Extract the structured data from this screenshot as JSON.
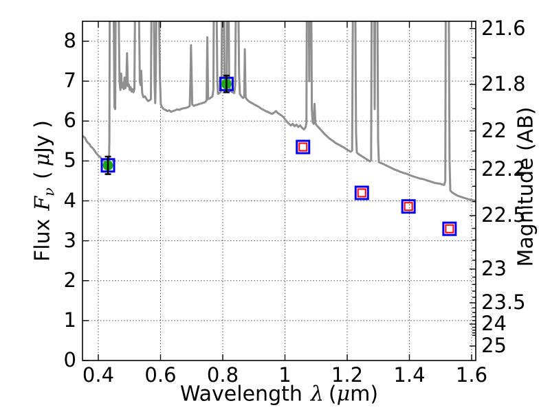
{
  "labels": {
    "xlabel": {
      "word": "Wavelength",
      "sym": "λ",
      "unit_open": "(",
      "unit_mu": "μ",
      "unit_rest": "m)"
    },
    "ylabel": {
      "word": "Flux",
      "sym": "F",
      "sub": "ν",
      "unit_open": "(",
      "unit_mu": "μ",
      "unit_rest": "Jy )"
    },
    "ylabel_right": "Magnitude (AB)"
  },
  "chart_data": {
    "type": "line",
    "title": "",
    "xlabel": "Wavelength λ (μm)",
    "ylabel": "Flux Fν ( μJy )",
    "ylabel_right": "Magnitude (AB)",
    "xlim": [
      0.3492,
      1.6133
    ],
    "ylim": [
      0,
      8.5
    ],
    "grid": {
      "on": true,
      "style": "dotted",
      "color": "#4a4a4a"
    },
    "legend": "none",
    "x_ticks": [
      0.4,
      0.6,
      0.8,
      1.0,
      1.2,
      1.4,
      1.6
    ],
    "x_tick_labels": [
      "0.4",
      "0.6",
      "0.8",
      "1",
      "1.2",
      "1.4",
      "1.6"
    ],
    "y_ticks_left": [
      0,
      1,
      2,
      3,
      4,
      5,
      6,
      7,
      8
    ],
    "y_tick_labels_left": [
      "0",
      "1",
      "2",
      "3",
      "4",
      "5",
      "6",
      "7",
      "8"
    ],
    "right_axis": {
      "label": "Magnitude (AB)",
      "major_ticks": [
        21.6,
        21.8,
        22.0,
        22.2,
        22.5,
        23.0,
        23.5,
        24.0,
        25.0
      ],
      "major_tick_labels": [
        "21.6",
        "21.8",
        "22",
        "22.2",
        "22.5",
        "23",
        "23.5",
        "24",
        "25"
      ],
      "minor_tick_step": 0.1,
      "minor_tick_max": 24.4,
      "ab_zeropoint_ujy": 23.9
    },
    "series": [
      {
        "name": "galaxy-spectrum",
        "type": "line",
        "color": "#8f8f8f",
        "linewidth": 3,
        "points": [
          [
            0.349,
            5.63
          ],
          [
            0.354,
            5.6
          ],
          [
            0.358,
            5.57
          ],
          [
            0.362,
            5.5
          ],
          [
            0.367,
            5.45
          ],
          [
            0.372,
            5.42
          ],
          [
            0.376,
            5.36
          ],
          [
            0.381,
            5.33
          ],
          [
            0.386,
            5.28
          ],
          [
            0.391,
            5.22
          ],
          [
            0.396,
            5.17
          ],
          [
            0.401,
            5.13
          ],
          [
            0.406,
            5.1
          ],
          [
            0.411,
            5.05
          ],
          [
            0.416,
            5.02
          ],
          [
            0.421,
            4.97
          ],
          [
            0.426,
            4.93
          ],
          [
            0.43,
            4.9
          ],
          [
            0.434,
            4.89
          ],
          [
            0.4355,
            5.5
          ],
          [
            0.437,
            9.2
          ],
          [
            0.449,
            9.2
          ],
          [
            0.452,
            6.35
          ],
          [
            0.4545,
            6.3
          ],
          [
            0.456,
            9.2
          ],
          [
            0.465,
            9.2
          ],
          [
            0.468,
            7.0
          ],
          [
            0.471,
            6.78
          ],
          [
            0.4735,
            7.19
          ],
          [
            0.476,
            6.84
          ],
          [
            0.479,
            6.95
          ],
          [
            0.4815,
            6.8
          ],
          [
            0.4845,
            7.09
          ],
          [
            0.487,
            6.82
          ],
          [
            0.49,
            6.95
          ],
          [
            0.4925,
            7.7
          ],
          [
            0.495,
            6.88
          ],
          [
            0.498,
            6.92
          ],
          [
            0.501,
            6.78
          ],
          [
            0.504,
            6.85
          ],
          [
            0.507,
            6.74
          ],
          [
            0.51,
            6.8
          ],
          [
            0.513,
            6.72
          ],
          [
            0.516,
            6.8
          ],
          [
            0.5185,
            9.2
          ],
          [
            0.53,
            9.2
          ],
          [
            0.5335,
            7.0
          ],
          [
            0.536,
            6.9
          ],
          [
            0.538,
            7.26
          ],
          [
            0.541,
            6.7
          ],
          [
            0.545,
            6.6
          ],
          [
            0.55,
            6.62
          ],
          [
            0.555,
            6.55
          ],
          [
            0.56,
            6.5
          ],
          [
            0.565,
            6.52
          ],
          [
            0.569,
            6.55
          ],
          [
            0.571,
            9.2
          ],
          [
            0.578,
            9.2
          ],
          [
            0.581,
            6.9
          ],
          [
            0.583,
            6.45
          ],
          [
            0.585,
            7.2
          ],
          [
            0.587,
            9.2
          ],
          [
            0.5945,
            9.2
          ],
          [
            0.598,
            7.1
          ],
          [
            0.601,
            6.42
          ],
          [
            0.605,
            6.35
          ],
          [
            0.61,
            6.3
          ],
          [
            0.616,
            6.28
          ],
          [
            0.622,
            6.25
          ],
          [
            0.628,
            6.27
          ],
          [
            0.634,
            6.23
          ],
          [
            0.64,
            6.25
          ],
          [
            0.647,
            6.27
          ],
          [
            0.654,
            6.29
          ],
          [
            0.661,
            6.28
          ],
          [
            0.668,
            6.31
          ],
          [
            0.675,
            6.32
          ],
          [
            0.682,
            6.33
          ],
          [
            0.689,
            6.35
          ],
          [
            0.694,
            6.38
          ],
          [
            0.6965,
            7.2
          ],
          [
            0.698,
            7.9
          ],
          [
            0.7,
            7.2
          ],
          [
            0.702,
            6.42
          ],
          [
            0.707,
            6.38
          ],
          [
            0.713,
            6.4
          ],
          [
            0.719,
            6.41
          ],
          [
            0.725,
            6.43
          ],
          [
            0.731,
            6.44
          ],
          [
            0.737,
            6.46
          ],
          [
            0.743,
            6.47
          ],
          [
            0.748,
            6.52
          ],
          [
            0.7505,
            8.1
          ],
          [
            0.753,
            6.55
          ],
          [
            0.757,
            6.56
          ],
          [
            0.762,
            6.59
          ],
          [
            0.767,
            6.62
          ],
          [
            0.77,
            6.8
          ],
          [
            0.7715,
            9.2
          ],
          [
            0.78,
            9.2
          ],
          [
            0.7825,
            7.0
          ],
          [
            0.785,
            6.68
          ],
          [
            0.789,
            6.7
          ],
          [
            0.793,
            6.72
          ],
          [
            0.796,
            6.9
          ],
          [
            0.798,
            9.2
          ],
          [
            0.8035,
            9.2
          ],
          [
            0.8055,
            7.1
          ],
          [
            0.807,
            6.74
          ],
          [
            0.81,
            6.76
          ],
          [
            0.8125,
            7.0
          ],
          [
            0.814,
            9.2
          ],
          [
            0.8185,
            9.2
          ],
          [
            0.8205,
            7.1
          ],
          [
            0.823,
            6.76
          ],
          [
            0.827,
            6.74
          ],
          [
            0.832,
            6.72
          ],
          [
            0.837,
            6.7
          ],
          [
            0.84,
            6.9
          ],
          [
            0.8425,
            9.2
          ],
          [
            0.85,
            9.2
          ],
          [
            0.8525,
            7.2
          ],
          [
            0.855,
            6.68
          ],
          [
            0.86,
            6.62
          ],
          [
            0.865,
            6.58
          ],
          [
            0.869,
            6.6
          ],
          [
            0.871,
            7.8
          ],
          [
            0.8735,
            6.6
          ],
          [
            0.877,
            6.55
          ],
          [
            0.883,
            6.5
          ],
          [
            0.889,
            6.47
          ],
          [
            0.896,
            6.44
          ],
          [
            0.903,
            6.41
          ],
          [
            0.91,
            6.38
          ],
          [
            0.917,
            6.35
          ],
          [
            0.924,
            6.31
          ],
          [
            0.931,
            6.28
          ],
          [
            0.938,
            6.25
          ],
          [
            0.945,
            6.23
          ],
          [
            0.952,
            6.2
          ],
          [
            0.959,
            6.18
          ],
          [
            0.965,
            6.21
          ],
          [
            0.971,
            6.25
          ],
          [
            0.977,
            6.2
          ],
          [
            0.983,
            6.17
          ],
          [
            0.989,
            6.14
          ],
          [
            0.995,
            6.1
          ],
          [
            1.001,
            6.04
          ],
          [
            1.007,
            5.98
          ],
          [
            1.013,
            5.93
          ],
          [
            1.019,
            5.89
          ],
          [
            1.025,
            5.93
          ],
          [
            1.031,
            5.87
          ],
          [
            1.037,
            5.91
          ],
          [
            1.043,
            5.85
          ],
          [
            1.049,
            5.89
          ],
          [
            1.055,
            5.83
          ],
          [
            1.061,
            5.79
          ],
          [
            1.066,
            5.84
          ],
          [
            1.069,
            5.95
          ],
          [
            1.0705,
            9.2
          ],
          [
            1.0765,
            9.2
          ],
          [
            1.078,
            7.0
          ],
          [
            1.0795,
            9.2
          ],
          [
            1.0845,
            9.2
          ],
          [
            1.0865,
            6.3
          ],
          [
            1.089,
            5.97
          ],
          [
            1.0925,
            5.93
          ],
          [
            1.095,
            6.43
          ],
          [
            1.098,
            5.95
          ],
          [
            1.101,
            5.9
          ],
          [
            1.107,
            5.85
          ],
          [
            1.114,
            5.79
          ],
          [
            1.121,
            5.73
          ],
          [
            1.128,
            5.67
          ],
          [
            1.135,
            5.62
          ],
          [
            1.142,
            5.57
          ],
          [
            1.149,
            5.53
          ],
          [
            1.156,
            5.49
          ],
          [
            1.163,
            5.45
          ],
          [
            1.17,
            5.42
          ],
          [
            1.177,
            5.39
          ],
          [
            1.184,
            5.36
          ],
          [
            1.191,
            5.33
          ],
          [
            1.198,
            5.29
          ],
          [
            1.205,
            5.26
          ],
          [
            1.211,
            5.23
          ],
          [
            1.216,
            5.26
          ],
          [
            1.2185,
            9.2
          ],
          [
            1.226,
            9.2
          ],
          [
            1.2285,
            5.7
          ],
          [
            1.231,
            5.21
          ],
          [
            1.237,
            5.17
          ],
          [
            1.243,
            5.14
          ],
          [
            1.249,
            5.11
          ],
          [
            1.255,
            5.08
          ],
          [
            1.261,
            5.05
          ],
          [
            1.267,
            5.02
          ],
          [
            1.273,
            4.99
          ],
          [
            1.277,
            5.02
          ],
          [
            1.279,
            9.2
          ],
          [
            1.2865,
            9.2
          ],
          [
            1.2885,
            6.3
          ],
          [
            1.29,
            9.2
          ],
          [
            1.297,
            9.2
          ],
          [
            1.2995,
            5.5
          ],
          [
            1.302,
            4.97
          ],
          [
            1.308,
            4.95
          ],
          [
            1.315,
            4.93
          ],
          [
            1.322,
            4.9
          ],
          [
            1.33,
            4.87
          ],
          [
            1.338,
            4.84
          ],
          [
            1.346,
            4.81
          ],
          [
            1.354,
            4.78
          ],
          [
            1.362,
            4.76
          ],
          [
            1.37,
            4.73
          ],
          [
            1.378,
            4.71
          ],
          [
            1.386,
            4.69
          ],
          [
            1.394,
            4.67
          ],
          [
            1.402,
            4.64
          ],
          [
            1.41,
            4.62
          ],
          [
            1.418,
            4.6
          ],
          [
            1.426,
            4.58
          ],
          [
            1.434,
            4.56
          ],
          [
            1.442,
            4.55
          ],
          [
            1.45,
            4.53
          ],
          [
            1.458,
            4.51
          ],
          [
            1.466,
            4.49
          ],
          [
            1.474,
            4.47
          ],
          [
            1.482,
            4.45
          ],
          [
            1.49,
            4.44
          ],
          [
            1.498,
            4.43
          ],
          [
            1.506,
            4.41
          ],
          [
            1.512,
            4.4
          ],
          [
            1.5155,
            4.5
          ],
          [
            1.517,
            9.2
          ],
          [
            1.5265,
            9.2
          ],
          [
            1.529,
            5.0
          ],
          [
            1.5315,
            4.26
          ],
          [
            1.536,
            4.22
          ],
          [
            1.542,
            4.19
          ],
          [
            1.55,
            4.15
          ],
          [
            1.558,
            4.12
          ],
          [
            1.566,
            4.1
          ],
          [
            1.574,
            4.08
          ],
          [
            1.582,
            4.06
          ],
          [
            1.59,
            4.04
          ],
          [
            1.598,
            4.03
          ],
          [
            1.606,
            4.01
          ],
          [
            1.613,
            4.0
          ]
        ]
      },
      {
        "name": "observed-photometry",
        "type": "scatter",
        "marker": "filled-circle-in-open-square-with-errorbar",
        "fill_color": "#1ea41e",
        "edge_color": "#0000ee",
        "errorbar_color": "#000000",
        "points": [
          {
            "x": 0.431,
            "y": 4.89,
            "yerr": 0.22
          },
          {
            "x": 0.812,
            "y": 6.93,
            "yerr": 0.21
          }
        ]
      },
      {
        "name": "model-photometry",
        "type": "scatter",
        "marker": "open-red-square-in-open-blue-square",
        "inner_color": "#ff0000",
        "edge_color": "#0000ee",
        "points": [
          {
            "x": 1.058,
            "y": 5.35
          },
          {
            "x": 1.247,
            "y": 4.2
          },
          {
            "x": 1.397,
            "y": 3.86
          },
          {
            "x": 1.529,
            "y": 3.3
          }
        ]
      }
    ]
  }
}
